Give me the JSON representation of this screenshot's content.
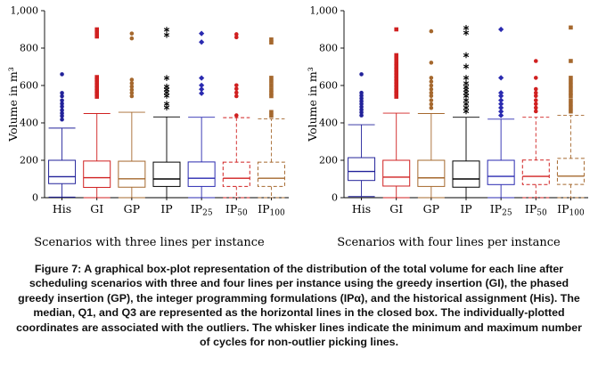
{
  "figure": {
    "caption": "Figure 7: A graphical box-plot representation of the distribution of the total volume for each line after scheduling scenarios with three and four lines per instance using the greedy insertion (GI), the phased greedy insertion (GP), the integer programming formulations (IPα), and the historical assignment (His). The median, Q1, and Q3 are represented as the horizontal lines in the closed box. The individually-plotted coordinates are associated with the outliers. The whisker lines indicate the minimum and maximum number of cycles for non-outlier picking lines."
  },
  "chart_data": [
    {
      "type": "boxplot",
      "title": "Scenarios with three lines per instance",
      "ylabel": "Volume in m³",
      "ylim": [
        0,
        1000
      ],
      "yticks": [
        0,
        200,
        400,
        600,
        800,
        1000
      ],
      "grid": false,
      "boxes": [
        {
          "category": {
            "text": "His",
            "sub": ""
          },
          "color": "#22229a",
          "marker": "circle",
          "dashed": false,
          "whisker_low": 3,
          "q1": 75,
          "median": 112,
          "q3": 200,
          "whisker_high": 372,
          "outliers": [
            418,
            437,
            452,
            468,
            487,
            503,
            520,
            543,
            560,
            660
          ]
        },
        {
          "category": {
            "text": "GI",
            "sub": ""
          },
          "color": "#d02020",
          "marker": "square",
          "dashed": false,
          "whisker_low": 0,
          "q1": 55,
          "median": 107,
          "q3": 196,
          "whisker_high": 450,
          "outliers": [
            540,
            556,
            571,
            586,
            601,
            617,
            632,
            645,
            862,
            882,
            900
          ]
        },
        {
          "category": {
            "text": "GP",
            "sub": ""
          },
          "color": "#a5682e",
          "marker": "circle",
          "dashed": false,
          "whisker_low": 0,
          "q1": 56,
          "median": 101,
          "q3": 195,
          "whisker_high": 457,
          "outliers": [
            543,
            560,
            577,
            594,
            612,
            631,
            852,
            878
          ]
        },
        {
          "category": {
            "text": "IP",
            "sub": ""
          },
          "color": "#000000",
          "marker": "asterisk",
          "dashed": false,
          "whisker_low": 0,
          "q1": 60,
          "median": 100,
          "q3": 190,
          "whisker_high": 432,
          "outliers": [
            482,
            502,
            545,
            562,
            578,
            594,
            640,
            870,
            898
          ]
        },
        {
          "category": {
            "text": "IP",
            "sub": "25"
          },
          "color": "#2a2ab0",
          "marker": "diamond",
          "dashed": false,
          "whisker_low": 0,
          "q1": 60,
          "median": 104,
          "q3": 191,
          "whisker_high": 430,
          "outliers": [
            558,
            580,
            601,
            640,
            832,
            878
          ]
        },
        {
          "category": {
            "text": "IP",
            "sub": "50"
          },
          "color": "#d02020",
          "marker": "circle",
          "dashed": true,
          "whisker_low": 0,
          "q1": 60,
          "median": 104,
          "q3": 190,
          "whisker_high": 428,
          "outliers": [
            440,
            543,
            562,
            582,
            601,
            858,
            874
          ]
        },
        {
          "category": {
            "text": "IP",
            "sub": "100"
          },
          "color": "#a5682e",
          "marker": "square",
          "dashed": true,
          "whisker_low": 0,
          "q1": 60,
          "median": 104,
          "q3": 190,
          "whisker_high": 421,
          "outliers": [
            438,
            458,
            543,
            560,
            579,
            600,
            621,
            641,
            830,
            846
          ]
        }
      ]
    },
    {
      "type": "boxplot",
      "title": "Scenarios with four lines per instance",
      "ylabel": "Volume in m³",
      "ylim": [
        0,
        1000
      ],
      "yticks": [
        0,
        200,
        400,
        600,
        800,
        1000
      ],
      "grid": false,
      "boxes": [
        {
          "category": {
            "text": "His",
            "sub": ""
          },
          "color": "#22229a",
          "marker": "circle",
          "dashed": false,
          "whisker_low": 6,
          "q1": 92,
          "median": 140,
          "q3": 214,
          "whisker_high": 390,
          "outliers": [
            440,
            456,
            471,
            486,
            501,
            516,
            531,
            546,
            561,
            660
          ]
        },
        {
          "category": {
            "text": "GI",
            "sub": ""
          },
          "color": "#d02020",
          "marker": "square",
          "dashed": false,
          "whisker_low": 0,
          "q1": 62,
          "median": 110,
          "q3": 200,
          "whisker_high": 452,
          "outliers": [
            540,
            557,
            573,
            589,
            605,
            621,
            637,
            653,
            669,
            685,
            702,
            720,
            742,
            762,
            900
          ]
        },
        {
          "category": {
            "text": "GP",
            "sub": ""
          },
          "color": "#a5682e",
          "marker": "circle",
          "dashed": false,
          "whisker_low": 0,
          "q1": 60,
          "median": 106,
          "q3": 200,
          "whisker_high": 450,
          "outliers": [
            480,
            500,
            521,
            544,
            561,
            580,
            600,
            621,
            641,
            722,
            890
          ]
        },
        {
          "category": {
            "text": "IP",
            "sub": ""
          },
          "color": "#000000",
          "marker": "asterisk",
          "dashed": false,
          "whisker_low": 0,
          "q1": 56,
          "median": 100,
          "q3": 196,
          "whisker_high": 430,
          "outliers": [
            462,
            481,
            501,
            521,
            544,
            561,
            577,
            592,
            612,
            641,
            702,
            762,
            882,
            908
          ]
        },
        {
          "category": {
            "text": "IP",
            "sub": "25"
          },
          "color": "#2a2ab0",
          "marker": "diamond",
          "dashed": false,
          "whisker_low": 0,
          "q1": 70,
          "median": 114,
          "q3": 200,
          "whisker_high": 420,
          "outliers": [
            440,
            461,
            481,
            501,
            521,
            544,
            561,
            641,
            900
          ]
        },
        {
          "category": {
            "text": "IP",
            "sub": "50"
          },
          "color": "#d02020",
          "marker": "circle",
          "dashed": true,
          "whisker_low": 0,
          "q1": 70,
          "median": 114,
          "q3": 201,
          "whisker_high": 430,
          "outliers": [
            462,
            481,
            501,
            521,
            544,
            561,
            581,
            641,
            731
          ]
        },
        {
          "category": {
            "text": "IP",
            "sub": "100"
          },
          "color": "#a5682e",
          "marker": "square",
          "dashed": true,
          "whisker_low": 0,
          "q1": 71,
          "median": 115,
          "q3": 210,
          "whisker_high": 440,
          "outliers": [
            461,
            481,
            501,
            521,
            544,
            561,
            581,
            601,
            621,
            641,
            731,
            910
          ]
        }
      ]
    }
  ]
}
